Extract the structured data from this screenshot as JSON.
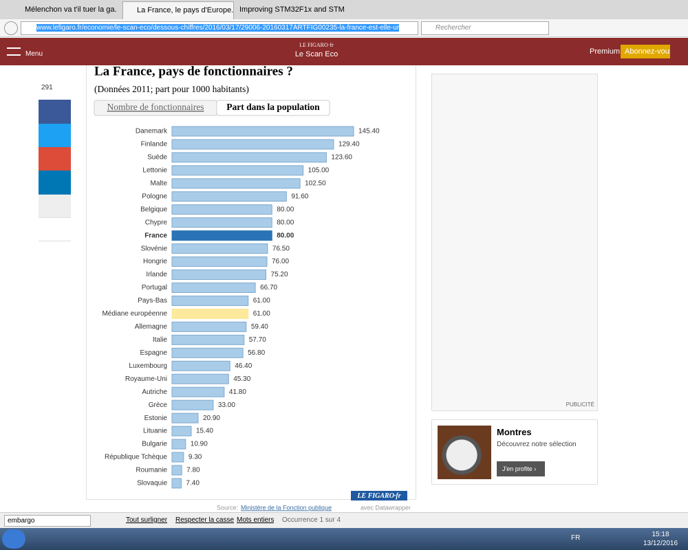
{
  "browser": {
    "tabs": [
      "Mélenchon va t'il tuer la ga...",
      "La France, le pays d'Europe...",
      "Improving STM32F1x and STM..."
    ],
    "url": "www.lefigaro.fr/economie/le-scan-eco/dessous-chiffres/2016/03/17/29006-20160317ARTFIG00235-la-france-est-elle-ur",
    "search_placeholder": "Rechercher"
  },
  "site": {
    "menu": "Menu",
    "logo_top": "LE FIGARO·fr",
    "logo_bottom": "Le Scan Eco",
    "premium": "Premium",
    "subscribe": "Abonnez-vous"
  },
  "share": {
    "comments": 291
  },
  "chart_data": {
    "type": "bar",
    "orientation": "horizontal",
    "title": "La France, pays de fonctionnaires ?",
    "subtitle": "(Données 2011; part pour 1000 habitants)",
    "tabs": [
      "Nombre de fonctionnaires",
      "Part dans la population"
    ],
    "categories": [
      "Danemark",
      "Finlande",
      "Suède",
      "Lettonie",
      "Malte",
      "Pologne",
      "Belgique",
      "Chypre",
      "France",
      "Slovénie",
      "Hongrie",
      "Irlande",
      "Portugal",
      "Pays-Bas",
      "Médiane européenne",
      "Allemagne",
      "Italie",
      "Espagne",
      "Luxembourg",
      "Royaume-Uni",
      "Autriche",
      "Grèce",
      "Estonie",
      "Lituanie",
      "Bulgarie",
      "République Tchèque",
      "Roumanie",
      "Slovaquie"
    ],
    "values": [
      145.4,
      129.4,
      123.6,
      105,
      102.5,
      91.6,
      80,
      80,
      80,
      76.5,
      76,
      75.2,
      66.7,
      61,
      61,
      59.4,
      57.7,
      56.8,
      46.4,
      45.3,
      41.8,
      33,
      20.9,
      15.4,
      10.9,
      9.3,
      7.8,
      7.4
    ],
    "value_labels": [
      "145.40",
      "129.40",
      "123.60",
      "105.00",
      "102.50",
      "91.60",
      "80.00",
      "80.00",
      "80.00",
      "76.50",
      "76.00",
      "75.20",
      "66.70",
      "61.00",
      "61.00",
      "59.40",
      "57.70",
      "56.80",
      "46.40",
      "45.30",
      "41.80",
      "33.00",
      "20.90",
      "15.40",
      "10.90",
      "9.30",
      "7.80",
      "7.40"
    ],
    "color": "#a9cce8",
    "highlights": {
      "8": "#2a74b6",
      "14": "#fde99c"
    },
    "bold_index": 8,
    "source_label": "Source:",
    "source_link": "Ministère de la Fonction publique",
    "source_suffix": "avec Datawrapper",
    "logo": "LE FIGARO·fr"
  },
  "sidebar": {
    "ad_label": "PUBLICITÉ",
    "promo_title": "Montres",
    "promo_text": "Découvrez notre sélection",
    "promo_button": "J'en profite ›"
  },
  "findbar": {
    "query": "embargo",
    "options": [
      "Tout surligner",
      "Respecter la casse",
      "Mots entiers"
    ],
    "status": "Occurrence 1 sur 4"
  },
  "taskbar": {
    "lang": "FR",
    "time": "15:18",
    "date": "13/12/2016"
  }
}
